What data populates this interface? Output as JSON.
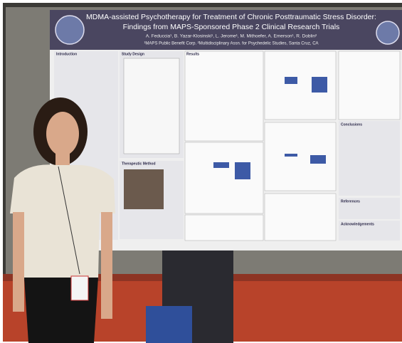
{
  "poster": {
    "title_line1": "MDMA-assisted Psychotherapy for Treatment of Chronic Posttraumatic Stress Disorder:",
    "title_line2": "Findings from MAPS-Sponsored Phase 2 Clinical Research Trials",
    "authors": "A. Feduccia¹, B. Yazar-Klosinski¹, L. Jerome¹, M. Mithoefer, A. Emerson¹, R. Doblin²",
    "affiliations": "¹MAPS Public Benefit Corp. ²Multidisciplinary Assn. for Psychedelic Studies, Santa Cruz, CA",
    "sections": [
      "Introduction",
      "Study Design",
      "Results",
      "Therapeutic Method",
      "Conclusions",
      "References",
      "Acknowledgements"
    ]
  }
}
